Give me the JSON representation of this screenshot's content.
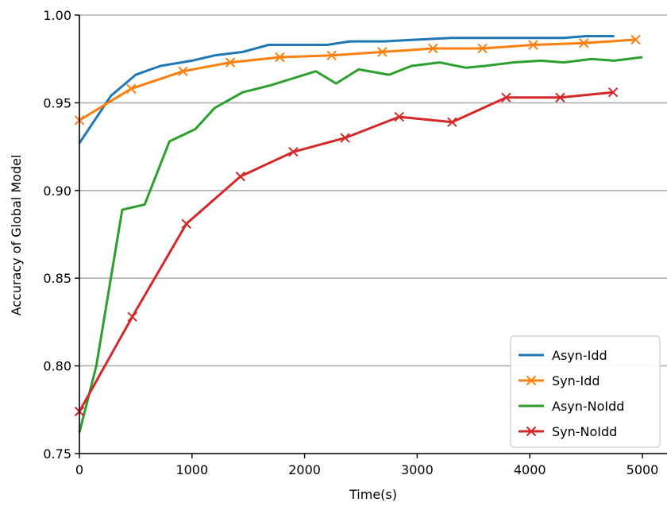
{
  "chart_data": {
    "type": "line",
    "title": "",
    "xlabel": "Time(s)",
    "ylabel": "Accuracy of Global Model",
    "xlim": [
      0,
      5000
    ],
    "ylim": [
      0.75,
      1.0
    ],
    "xticks": [
      0,
      1000,
      2000,
      3000,
      4000,
      5000
    ],
    "yticks": [
      0.75,
      0.8,
      0.85,
      0.9,
      0.95,
      1.0
    ],
    "xtick_labels": [
      "0",
      "1000",
      "2000",
      "3000",
      "4000",
      "5000"
    ],
    "ytick_labels": [
      "0.75",
      "0.80",
      "0.85",
      "0.90",
      "0.95",
      "1.00"
    ],
    "grid": "horizontal",
    "legend_position": "lower-right",
    "series": [
      {
        "name": "Asyn-Idd",
        "color": "#1f77b4",
        "marker": "none",
        "x": [
          0,
          280,
          500,
          720,
          1000,
          1200,
          1450,
          1680,
          1900,
          2200,
          2400,
          2700,
          3000,
          3300,
          3700,
          4000,
          4300,
          4500,
          4750
        ],
        "y": [
          0.927,
          0.954,
          0.966,
          0.971,
          0.974,
          0.977,
          0.979,
          0.983,
          0.983,
          0.983,
          0.985,
          0.985,
          0.986,
          0.987,
          0.987,
          0.987,
          0.987,
          0.988,
          0.988
        ]
      },
      {
        "name": "Syn-Idd",
        "color": "#ff7f0e",
        "marker": "x",
        "x": [
          0,
          460,
          920,
          1340,
          1780,
          2240,
          2690,
          3140,
          3580,
          4030,
          4480,
          4940
        ],
        "y": [
          0.94,
          0.958,
          0.968,
          0.973,
          0.976,
          0.977,
          0.979,
          0.981,
          0.981,
          0.983,
          0.984,
          0.986
        ]
      },
      {
        "name": "Asyn-NoIdd",
        "color": "#2ca02c",
        "marker": "none",
        "x": [
          0,
          150,
          380,
          580,
          800,
          1030,
          1200,
          1450,
          1700,
          1900,
          2100,
          2280,
          2480,
          2750,
          2950,
          3200,
          3430,
          3600,
          3850,
          4100,
          4300,
          4550,
          4750,
          5000
        ],
        "y": [
          0.762,
          0.8,
          0.889,
          0.892,
          0.928,
          0.935,
          0.947,
          0.956,
          0.96,
          0.964,
          0.968,
          0.961,
          0.969,
          0.966,
          0.971,
          0.973,
          0.97,
          0.971,
          0.973,
          0.974,
          0.973,
          0.975,
          0.974,
          0.976
        ]
      },
      {
        "name": "Syn-NoIdd",
        "color": "#d62728",
        "marker": "x",
        "x": [
          0,
          470,
          950,
          1430,
          1900,
          2360,
          2840,
          3310,
          3790,
          4270,
          4740
        ],
        "y": [
          0.774,
          0.828,
          0.881,
          0.908,
          0.922,
          0.93,
          0.942,
          0.939,
          0.953,
          0.953,
          0.956
        ]
      }
    ]
  }
}
